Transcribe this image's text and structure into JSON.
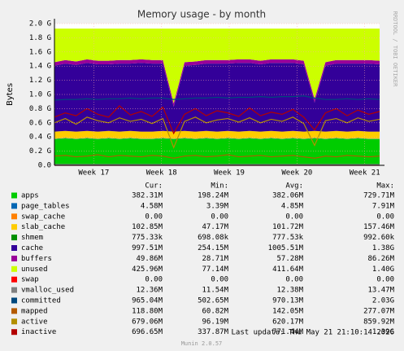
{
  "chart_data": {
    "type": "area",
    "title": "Memory usage - by month",
    "y_label": "Bytes",
    "side_text": "RRDTOOL / TOBI OETIKER",
    "xlim": [
      16.42,
      21.22
    ],
    "xticks": [
      {
        "value": 17,
        "label": "Week 17"
      },
      {
        "value": 18,
        "label": "Week 18"
      },
      {
        "value": 19,
        "label": "Week 19"
      },
      {
        "value": 20,
        "label": "Week 20"
      },
      {
        "value": 21,
        "label": "Week 21"
      }
    ],
    "ylim": [
      0,
      2.0
    ],
    "yticks": [
      {
        "value": 0,
        "label": "0.0"
      },
      {
        "value": 0.2,
        "label": "0.2 G"
      },
      {
        "value": 0.4,
        "label": "0.4 G"
      },
      {
        "value": 0.6,
        "label": "0.6 G"
      },
      {
        "value": 0.8,
        "label": "0.8 G"
      },
      {
        "value": 1.0,
        "label": "1.0 G"
      },
      {
        "value": 1.2,
        "label": "1.2 G"
      },
      {
        "value": 1.4,
        "label": "1.4 G"
      },
      {
        "value": 1.6,
        "label": "1.6 G"
      },
      {
        "value": 1.8,
        "label": "1.8 G"
      },
      {
        "value": 2.0,
        "label": "2.0 G"
      }
    ],
    "grid": true,
    "x": [
      16.42,
      16.58,
      16.74,
      16.9,
      17.06,
      17.22,
      17.38,
      17.54,
      17.7,
      17.86,
      18.02,
      18.18,
      18.34,
      18.5,
      18.66,
      18.82,
      18.98,
      19.14,
      19.3,
      19.46,
      19.62,
      19.78,
      19.94,
      20.1,
      20.26,
      20.42,
      20.58,
      20.74,
      20.9,
      21.06,
      21.22
    ],
    "stat_labels": [
      "Cur:",
      "Min:",
      "Avg:",
      "Max:"
    ],
    "series": [
      {
        "name": "apps",
        "color": "#00CC00",
        "stacked": true,
        "stats": [
          "382.31M",
          "198.24M",
          "382.06M",
          "729.71M"
        ],
        "values": [
          0.37,
          0.38,
          0.37,
          0.38,
          0.37,
          0.38,
          0.37,
          0.38,
          0.37,
          0.37,
          0.38,
          0.37,
          0.38,
          0.37,
          0.38,
          0.37,
          0.38,
          0.37,
          0.38,
          0.37,
          0.38,
          0.37,
          0.38,
          0.37,
          0.38,
          0.37,
          0.38,
          0.37,
          0.38,
          0.37,
          0.37
        ]
      },
      {
        "name": "page_tables",
        "color": "#0066B3",
        "stacked": true,
        "stats": [
          "4.58M",
          "3.39M",
          "4.85M",
          "7.91M"
        ],
        "values": [
          0.005,
          0.005,
          0.005,
          0.005,
          0.005,
          0.005,
          0.005,
          0.005,
          0.005,
          0.005,
          0.005,
          0.005,
          0.005,
          0.005,
          0.005,
          0.005,
          0.005,
          0.005,
          0.005,
          0.005,
          0.005,
          0.005,
          0.005,
          0.005,
          0.005,
          0.005,
          0.005,
          0.005,
          0.005,
          0.005,
          0.005
        ]
      },
      {
        "name": "swap_cache",
        "color": "#FF8000",
        "stacked": true,
        "stats": [
          "0.00",
          "0.00",
          "0.00",
          "0.00"
        ],
        "values": [
          0,
          0,
          0,
          0,
          0,
          0,
          0,
          0,
          0,
          0,
          0,
          0,
          0,
          0,
          0,
          0,
          0,
          0,
          0,
          0,
          0,
          0,
          0,
          0,
          0,
          0,
          0,
          0,
          0,
          0,
          0
        ]
      },
      {
        "name": "slab_cache",
        "color": "#FFCC00",
        "stacked": true,
        "stats": [
          "102.85M",
          "47.17M",
          "101.72M",
          "157.46M"
        ],
        "values": [
          0.1,
          0.1,
          0.1,
          0.1,
          0.1,
          0.1,
          0.1,
          0.1,
          0.1,
          0.1,
          0.1,
          0.1,
          0.1,
          0.1,
          0.1,
          0.1,
          0.1,
          0.1,
          0.1,
          0.1,
          0.1,
          0.1,
          0.1,
          0.1,
          0.1,
          0.1,
          0.1,
          0.1,
          0.1,
          0.1,
          0.1
        ]
      },
      {
        "name": "shmem",
        "color": "#008F00",
        "stacked": true,
        "stats": [
          "775.33k",
          "698.08k",
          "777.53k",
          "992.60k"
        ],
        "values": [
          0.001,
          0.001,
          0.001,
          0.001,
          0.001,
          0.001,
          0.001,
          0.001,
          0.001,
          0.001,
          0.001,
          0.001,
          0.001,
          0.001,
          0.001,
          0.001,
          0.001,
          0.001,
          0.001,
          0.001,
          0.001,
          0.001,
          0.001,
          0.001,
          0.001,
          0.001,
          0.001,
          0.001,
          0.001,
          0.001,
          0.001
        ]
      },
      {
        "name": "cache",
        "color": "#330099",
        "stacked": true,
        "stats": [
          "997.51M",
          "254.15M",
          "1005.51M",
          "1.38G"
        ],
        "values": [
          0.93,
          0.95,
          0.94,
          0.96,
          0.95,
          0.94,
          0.96,
          0.95,
          0.97,
          0.96,
          0.95,
          0.35,
          0.92,
          0.94,
          0.95,
          0.96,
          0.95,
          0.97,
          0.96,
          0.95,
          0.96,
          0.97,
          0.96,
          0.95,
          0.4,
          0.93,
          0.95,
          0.96,
          0.95,
          0.96,
          0.95
        ]
      },
      {
        "name": "buffers",
        "color": "#990099",
        "stacked": true,
        "stats": [
          "49.86M",
          "28.71M",
          "57.28M",
          "86.26M"
        ],
        "values": [
          0.05,
          0.05,
          0.05,
          0.05,
          0.05,
          0.05,
          0.05,
          0.05,
          0.05,
          0.05,
          0.05,
          0.05,
          0.05,
          0.05,
          0.05,
          0.05,
          0.05,
          0.05,
          0.05,
          0.05,
          0.05,
          0.05,
          0.05,
          0.05,
          0.05,
          0.05,
          0.05,
          0.05,
          0.05,
          0.05,
          0.05
        ]
      },
      {
        "name": "unused",
        "color": "#CCFF00",
        "stacked": true,
        "stats": [
          "425.96M",
          "77.14M",
          "411.64M",
          "1.40G"
        ],
        "values": [
          0.474,
          0.444,
          0.464,
          0.434,
          0.454,
          0.454,
          0.444,
          0.444,
          0.434,
          0.444,
          0.444,
          1.054,
          0.474,
          0.464,
          0.444,
          0.444,
          0.444,
          0.434,
          0.434,
          0.454,
          0.434,
          0.434,
          0.434,
          0.454,
          0.994,
          0.474,
          0.444,
          0.444,
          0.444,
          0.444,
          0.454
        ]
      },
      {
        "name": "swap",
        "color": "#FF0000",
        "stacked": false,
        "stats": [
          "0.00",
          "0.00",
          "0.00",
          "0.00"
        ],
        "values": [
          0,
          0,
          0,
          0,
          0,
          0,
          0,
          0,
          0,
          0,
          0,
          0,
          0,
          0,
          0,
          0,
          0,
          0,
          0,
          0,
          0,
          0,
          0,
          0,
          0,
          0,
          0,
          0,
          0,
          0,
          0
        ]
      },
      {
        "name": "vmalloc_used",
        "color": "#808080",
        "stacked": false,
        "stats": [
          "12.36M",
          "11.54M",
          "12.38M",
          "13.47M"
        ],
        "values": [
          0.012,
          0.012,
          0.012,
          0.012,
          0.012,
          0.012,
          0.012,
          0.012,
          0.012,
          0.012,
          0.012,
          0.012,
          0.012,
          0.012,
          0.012,
          0.012,
          0.012,
          0.012,
          0.012,
          0.012,
          0.012,
          0.012,
          0.012,
          0.012,
          0.012,
          0.012,
          0.012,
          0.012,
          0.012,
          0.012,
          0.012
        ]
      },
      {
        "name": "committed",
        "color": "#00487D",
        "stacked": false,
        "stats": [
          "965.04M",
          "502.65M",
          "970.13M",
          "2.03G"
        ],
        "values": [
          0.92,
          0.93,
          0.93,
          0.94,
          0.93,
          0.94,
          0.94,
          0.95,
          0.94,
          0.95,
          0.95,
          0.93,
          0.94,
          0.95,
          0.95,
          0.96,
          0.95,
          0.96,
          0.96,
          0.97,
          0.96,
          0.97,
          0.97,
          0.98,
          0.95,
          0.93,
          0.93,
          0.94,
          0.93,
          0.94,
          0.93
        ]
      },
      {
        "name": "mapped",
        "color": "#B35A00",
        "stacked": false,
        "stats": [
          "118.80M",
          "60.82M",
          "142.05M",
          "277.07M"
        ],
        "values": [
          0.13,
          0.14,
          0.12,
          0.13,
          0.15,
          0.12,
          0.14,
          0.13,
          0.12,
          0.14,
          0.13,
          0.1,
          0.13,
          0.14,
          0.12,
          0.13,
          0.15,
          0.12,
          0.13,
          0.14,
          0.12,
          0.13,
          0.14,
          0.12,
          0.1,
          0.13,
          0.12,
          0.14,
          0.13,
          0.12,
          0.13
        ]
      },
      {
        "name": "active",
        "color": "#B38F00",
        "stacked": false,
        "stats": [
          "679.06M",
          "96.19M",
          "620.17M",
          "859.92M"
        ],
        "values": [
          0.6,
          0.66,
          0.58,
          0.68,
          0.63,
          0.6,
          0.67,
          0.62,
          0.65,
          0.59,
          0.66,
          0.25,
          0.62,
          0.68,
          0.6,
          0.64,
          0.66,
          0.61,
          0.67,
          0.6,
          0.65,
          0.62,
          0.68,
          0.59,
          0.28,
          0.63,
          0.66,
          0.6,
          0.67,
          0.62,
          0.65
        ]
      },
      {
        "name": "inactive",
        "color": "#B30000",
        "stacked": false,
        "stats": [
          "696.65M",
          "337.87M",
          "771.44M",
          "1.39G"
        ],
        "values": [
          0.68,
          0.74,
          0.7,
          0.8,
          0.72,
          0.68,
          0.84,
          0.71,
          0.76,
          0.69,
          0.82,
          0.45,
          0.72,
          0.8,
          0.7,
          0.77,
          0.74,
          0.69,
          0.81,
          0.7,
          0.75,
          0.72,
          0.79,
          0.68,
          0.5,
          0.74,
          0.8,
          0.7,
          0.78,
          0.72,
          0.76
        ]
      }
    ],
    "last_update": "Last update: Thu May 21 21:10:14 2026",
    "footer": "Munin 2.0.57"
  }
}
